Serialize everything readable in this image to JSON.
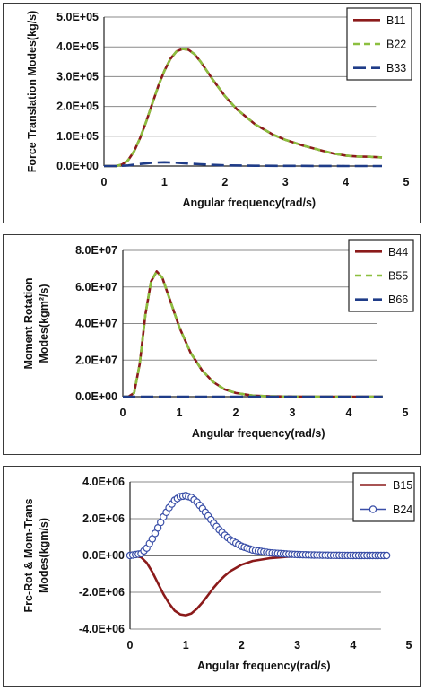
{
  "chart_data": [
    {
      "type": "line",
      "xlabel": "Angular frequency(rad/s)",
      "ylabel": "Force Translation Modes(kg/s)",
      "xlim": [
        0,
        5
      ],
      "ylim": [
        0,
        500000
      ],
      "x_ticks": [
        "0",
        "1",
        "2",
        "3",
        "4",
        "5"
      ],
      "y_ticks": [
        "0.0E+00",
        "1.0E+05",
        "2.0E+05",
        "3.0E+05",
        "4.0E+05",
        "5.0E+05"
      ],
      "legend_position": "top-right",
      "grid": "horizontal",
      "series": [
        {
          "name": "B11",
          "color": "#8b1a1a",
          "style": "solid",
          "x": [
            0,
            0.2,
            0.3,
            0.4,
            0.5,
            0.6,
            0.7,
            0.8,
            0.9,
            1.0,
            1.1,
            1.2,
            1.3,
            1.4,
            1.5,
            1.6,
            1.7,
            1.8,
            2.0,
            2.2,
            2.5,
            2.8,
            3.0,
            3.3,
            3.6,
            3.8,
            4.0,
            4.2,
            4.4,
            4.6
          ],
          "y": [
            0,
            0,
            5000,
            20000,
            50000,
            95000,
            150000,
            210000,
            270000,
            320000,
            360000,
            385000,
            393000,
            390000,
            375000,
            350000,
            320000,
            290000,
            235000,
            190000,
            140000,
            105000,
            88000,
            68000,
            52000,
            42000,
            35000,
            32000,
            31000,
            29000
          ]
        },
        {
          "name": "B22",
          "color": "#8cbf3f",
          "style": "dashed",
          "x": [
            0,
            0.2,
            0.3,
            0.4,
            0.5,
            0.6,
            0.7,
            0.8,
            0.9,
            1.0,
            1.1,
            1.2,
            1.3,
            1.4,
            1.5,
            1.6,
            1.7,
            1.8,
            2.0,
            2.2,
            2.5,
            2.8,
            3.0,
            3.3,
            3.6,
            3.8,
            4.0,
            4.2,
            4.4,
            4.6
          ],
          "y": [
            0,
            0,
            5000,
            20000,
            50000,
            95000,
            150000,
            210000,
            270000,
            320000,
            360000,
            385000,
            393000,
            390000,
            375000,
            350000,
            320000,
            290000,
            235000,
            190000,
            140000,
            105000,
            88000,
            68000,
            52000,
            42000,
            35000,
            32000,
            31000,
            29000
          ]
        },
        {
          "name": "B33",
          "color": "#1f3c88",
          "style": "longdash",
          "x": [
            0,
            0.2,
            0.4,
            0.6,
            0.8,
            1.0,
            1.2,
            1.4,
            1.6,
            1.8,
            2.0,
            2.5,
            3.0,
            3.5,
            4.0,
            4.6
          ],
          "y": [
            0,
            0,
            2000,
            7000,
            11000,
            12500,
            11000,
            8500,
            6000,
            4000,
            2500,
            1000,
            500,
            200,
            100,
            0
          ]
        }
      ]
    },
    {
      "type": "line",
      "xlabel": "Angular frequency(rad/s)",
      "ylabel": "Moment Rotation Modes(kgm²/s)",
      "ylabel_lines": [
        "Moment Rotation",
        "Modes(kgm²/s)"
      ],
      "xlim": [
        0,
        5
      ],
      "ylim": [
        0,
        80000000
      ],
      "x_ticks": [
        "0",
        "1",
        "2",
        "3",
        "4",
        "5"
      ],
      "y_ticks": [
        "0.0E+00",
        "2.0E+07",
        "4.0E+07",
        "6.0E+07",
        "8.0E+07"
      ],
      "legend_position": "top-right",
      "grid": "horizontal",
      "series": [
        {
          "name": "B44",
          "color": "#8b1a1a",
          "style": "solid",
          "x": [
            0,
            0.1,
            0.2,
            0.3,
            0.4,
            0.5,
            0.6,
            0.7,
            0.8,
            0.9,
            1.0,
            1.1,
            1.2,
            1.4,
            1.6,
            1.8,
            2.0,
            2.3,
            2.6,
            3.0,
            3.5,
            4.0,
            4.6
          ],
          "y": [
            0,
            0,
            2000000,
            18000000,
            45000000,
            63000000,
            68500000,
            65000000,
            56000000,
            47000000,
            38000000,
            31000000,
            24000000,
            14500000,
            8000000,
            4000000,
            2000000,
            600000,
            200000,
            50000,
            0,
            0,
            0
          ]
        },
        {
          "name": "B55",
          "color": "#8cbf3f",
          "style": "dashed",
          "x": [
            0,
            0.1,
            0.2,
            0.3,
            0.4,
            0.5,
            0.6,
            0.7,
            0.8,
            0.9,
            1.0,
            1.1,
            1.2,
            1.4,
            1.6,
            1.8,
            2.0,
            2.3,
            2.6,
            3.0,
            3.5,
            4.0,
            4.6
          ],
          "y": [
            0,
            0,
            2000000,
            18000000,
            45000000,
            63000000,
            68500000,
            65000000,
            56000000,
            47000000,
            38000000,
            31000000,
            24000000,
            14500000,
            8000000,
            4000000,
            2000000,
            600000,
            200000,
            50000,
            0,
            0,
            0
          ]
        },
        {
          "name": "B66",
          "color": "#1f3c88",
          "style": "longdash",
          "x": [
            0,
            1,
            2,
            3,
            4,
            4.6
          ],
          "y": [
            0,
            0,
            0,
            0,
            0,
            0
          ]
        }
      ]
    },
    {
      "type": "line",
      "xlabel": "Angular frequency(rad/s)",
      "ylabel": "Frc-Rot & Mom-Trans Modes(kgm/s)",
      "ylabel_lines": [
        "Frc-Rot & Mom-Trans",
        "Modes(kgm/s)"
      ],
      "xlim": [
        0,
        5
      ],
      "ylim": [
        -4000000,
        4000000
      ],
      "x_ticks": [
        "0",
        "1",
        "2",
        "3",
        "4",
        "5"
      ],
      "y_ticks": [
        "-4.0E+06",
        "-2.0E+06",
        "0.0E+00",
        "2.0E+06",
        "4.0E+06"
      ],
      "legend_position": "top-right",
      "grid": "horizontal",
      "series": [
        {
          "name": "B15",
          "color": "#8b1a1a",
          "style": "solid",
          "x": [
            0,
            0.2,
            0.3,
            0.4,
            0.5,
            0.6,
            0.7,
            0.8,
            0.9,
            1.0,
            1.1,
            1.2,
            1.3,
            1.4,
            1.5,
            1.6,
            1.7,
            1.8,
            2.0,
            2.2,
            2.5,
            2.8,
            3.0,
            3.3,
            3.6,
            4.0,
            4.6
          ],
          "y": [
            0,
            -100000,
            -400000,
            -900000,
            -1500000,
            -2100000,
            -2600000,
            -3000000,
            -3200000,
            -3250000,
            -3150000,
            -2900000,
            -2550000,
            -2150000,
            -1750000,
            -1400000,
            -1100000,
            -850000,
            -500000,
            -300000,
            -150000,
            -80000,
            -50000,
            -25000,
            -10000,
            0,
            0
          ]
        },
        {
          "name": "B24",
          "color": "#3a4fa8",
          "style": "solid-circle",
          "x": [
            0,
            0.2,
            0.3,
            0.4,
            0.5,
            0.6,
            0.7,
            0.8,
            0.9,
            1.0,
            1.1,
            1.2,
            1.3,
            1.4,
            1.5,
            1.6,
            1.7,
            1.8,
            2.0,
            2.2,
            2.5,
            2.8,
            3.0,
            3.3,
            3.6,
            4.0,
            4.6
          ],
          "y": [
            0,
            100000,
            400000,
            900000,
            1500000,
            2100000,
            2600000,
            3000000,
            3200000,
            3250000,
            3150000,
            2900000,
            2550000,
            2150000,
            1750000,
            1400000,
            1100000,
            850000,
            500000,
            300000,
            150000,
            80000,
            50000,
            25000,
            10000,
            0,
            0
          ]
        }
      ]
    }
  ]
}
